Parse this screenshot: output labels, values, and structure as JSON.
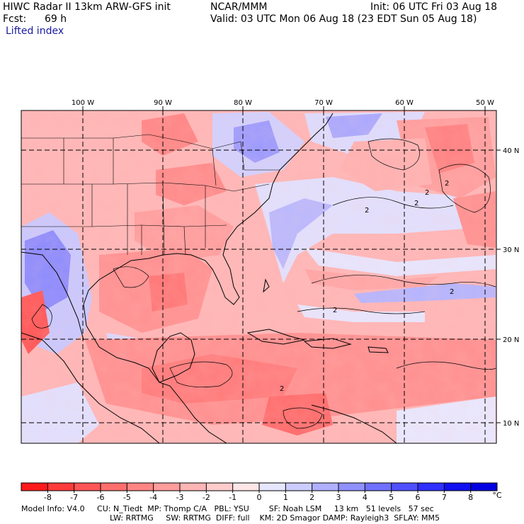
{
  "header": {
    "model_line": "HIWC Radar II 13km ARW-GFS init",
    "org": "NCAR/MMM",
    "init": "Init: 06 UTC Fri 03 Aug 18",
    "fcst_label": "Fcst:",
    "fcst_value": "69 h",
    "valid": "Valid: 03 UTC Mon 06 Aug 18 (23 EDT Sun 05 Aug 18)",
    "field": "Lifted index"
  },
  "map": {
    "lon_labels": [
      "100 W",
      "90 W",
      "80 W",
      "70 W",
      "60 W",
      "50 W"
    ],
    "lat_labels": [
      "40 N",
      "30 N",
      "20 N",
      "10 N"
    ],
    "contour_labels": [
      "2",
      "2",
      "2",
      "2",
      "2",
      "2",
      "2"
    ]
  },
  "colorbar": {
    "labels": [
      "-8",
      "-7",
      "-6",
      "-5",
      "-4",
      "-3",
      "-2",
      "-1",
      "0",
      "1",
      "2",
      "3",
      "4",
      "5",
      "6",
      "7",
      "8"
    ],
    "unit": "°C",
    "colors": [
      "#ff1a1a",
      "#ff3a3a",
      "#ff5555",
      "#ff6e6e",
      "#ff8585",
      "#ff9d9d",
      "#ffb5b5",
      "#ffcccc",
      "#ffe6e6",
      "#e6e6ff",
      "#ccccff",
      "#b0b0ff",
      "#9090ff",
      "#7070ff",
      "#5050ff",
      "#3030ff",
      "#1010f0",
      "#0000e0"
    ]
  },
  "footer": {
    "line1": "Model Info: V4.0     CU: N_Tiedt  MP: Thomp C/A   PBL: YSU        SF: Noah LSM     13 km   51 levels   57 sec",
    "line2": "LW: RRTMG     SW: RRTMG  DIFF: full    KM: 2D Smagor DAMP: Rayleigh3  SFLAY: MM5"
  }
}
